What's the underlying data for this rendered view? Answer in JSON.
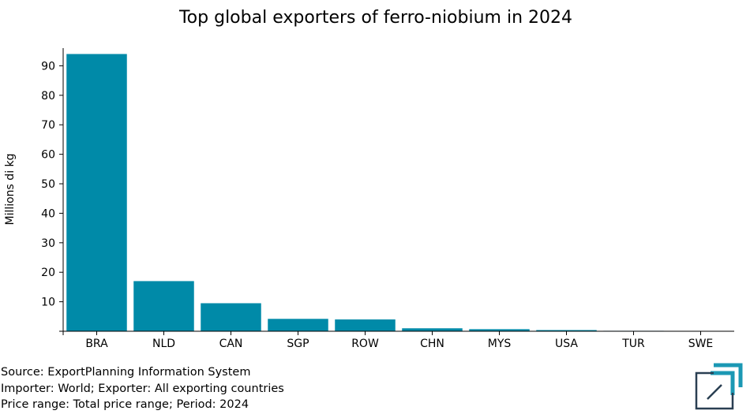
{
  "chart_data": {
    "type": "bar",
    "title": "Top global exporters of ferro-niobium in 2024",
    "xlabel": "",
    "ylabel": "Millions di kg",
    "categories": [
      "BRA",
      "NLD",
      "CAN",
      "SGP",
      "ROW",
      "CHN",
      "MYS",
      "USA",
      "TUR",
      "SWE"
    ],
    "values": [
      94.0,
      17.0,
      9.5,
      4.2,
      4.0,
      1.0,
      0.7,
      0.4,
      0.15,
      0.05
    ],
    "ylim": [
      0,
      96
    ],
    "yticks": [
      10,
      20,
      30,
      40,
      50,
      60,
      70,
      80,
      90
    ],
    "grid": false,
    "legend": "none",
    "bar_color": "#008aa8"
  },
  "footer": {
    "lines": [
      "Source: ExportPlanning Information System",
      "Importer: World; Exporter: All exporting countries",
      "Price range: Total price range; Period: 2024"
    ]
  },
  "logo": {
    "icon": "exportplanning-logo-icon",
    "colors": [
      "#1b98b4",
      "#2a3f52"
    ]
  }
}
